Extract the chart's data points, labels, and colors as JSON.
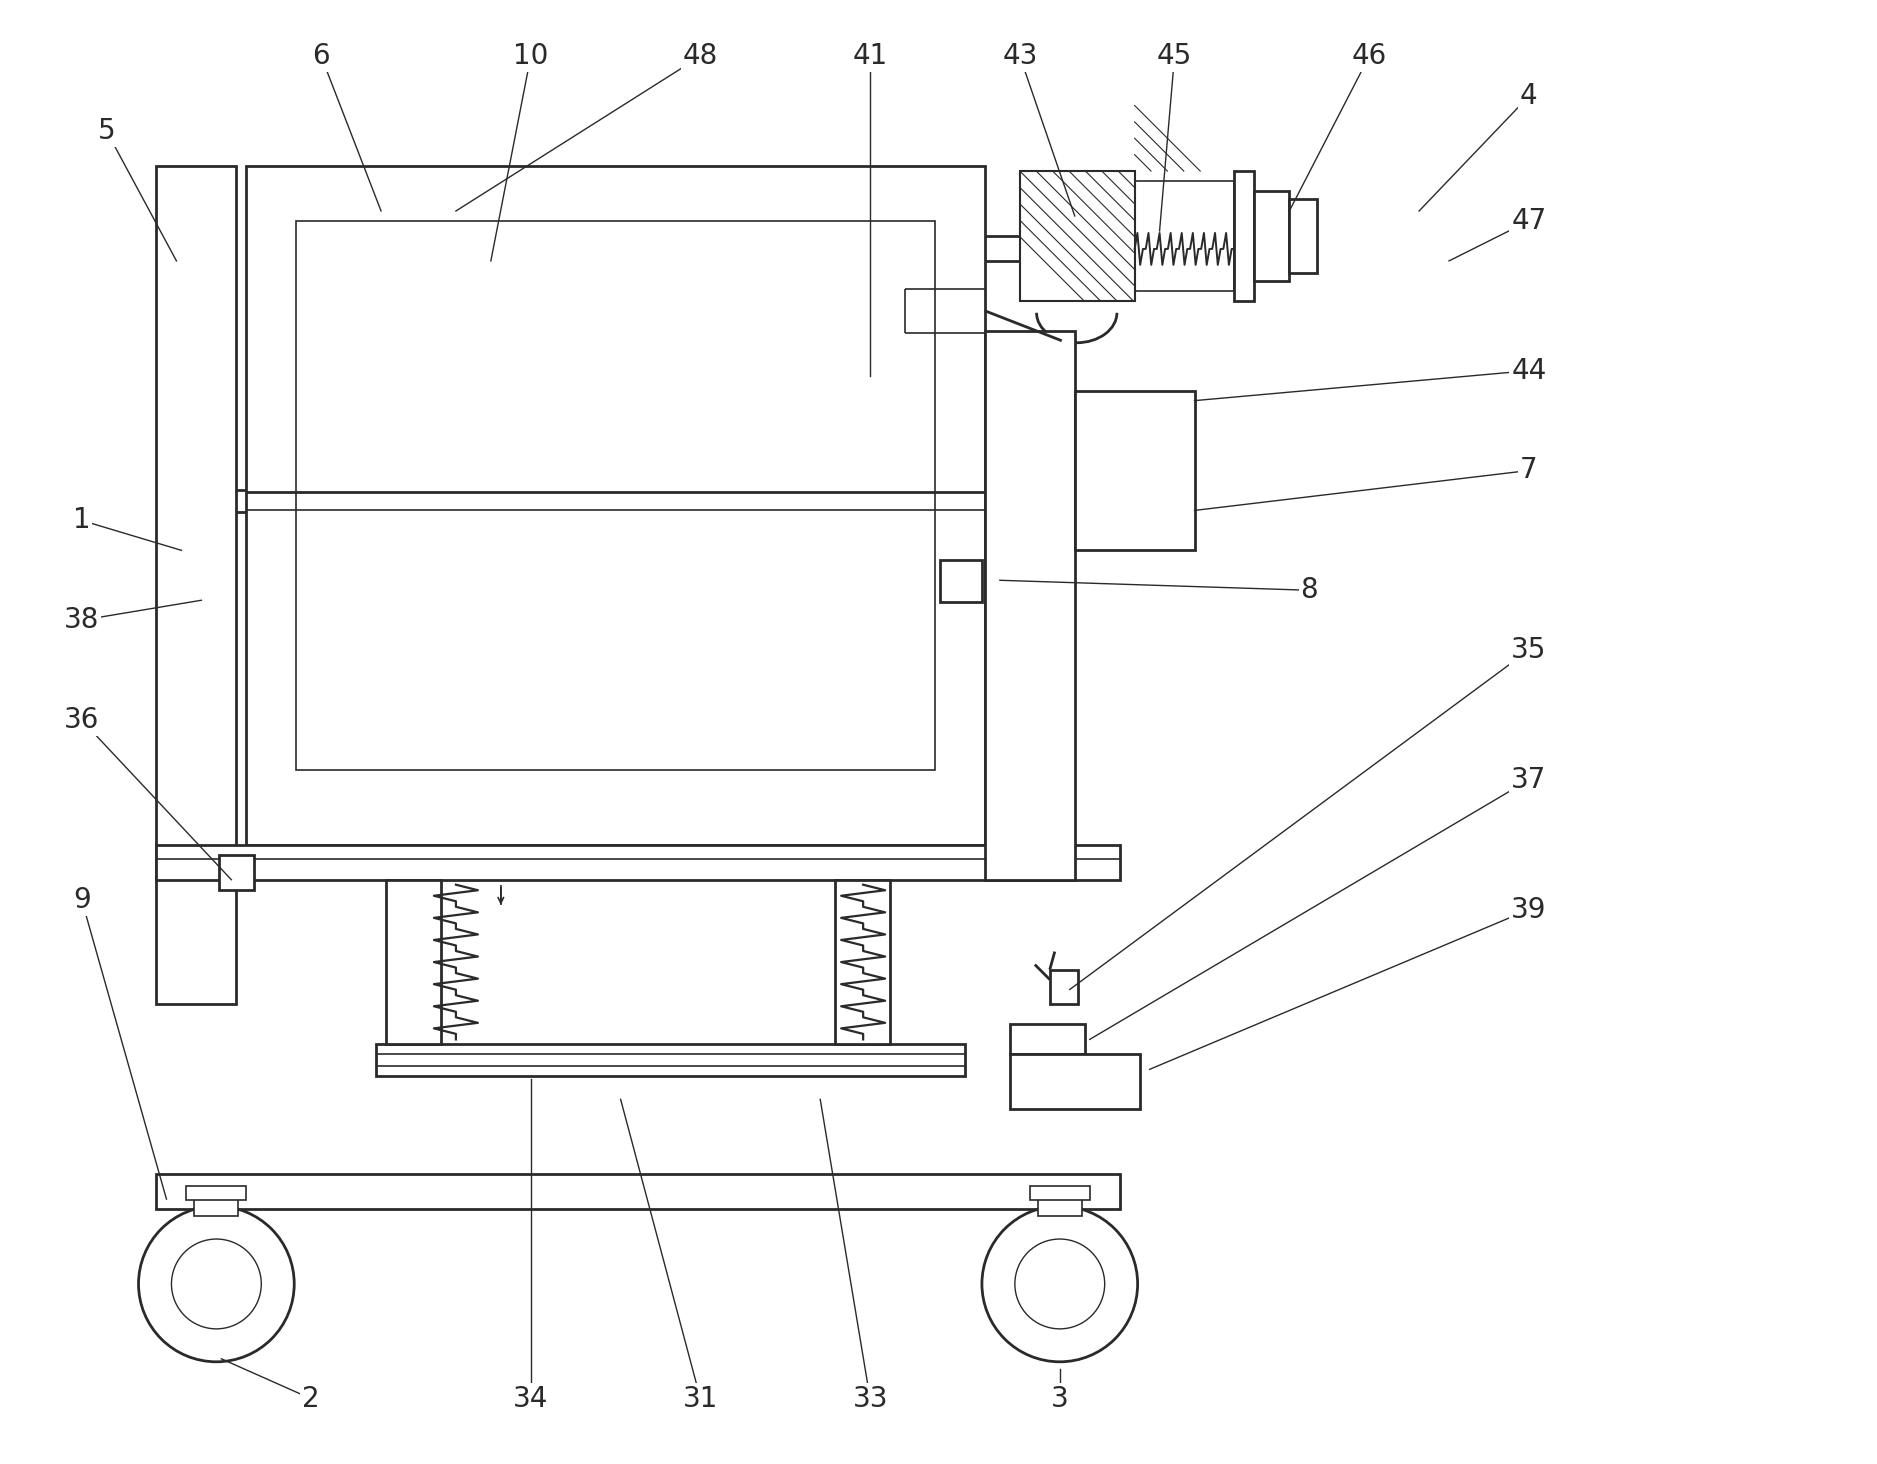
{
  "bg_color": "#ffffff",
  "line_color": "#2a2a2a",
  "linewidth": 2.0,
  "thin_lw": 1.2,
  "fig_width": 18.77,
  "fig_height": 14.64,
  "label_fontsize": 20
}
